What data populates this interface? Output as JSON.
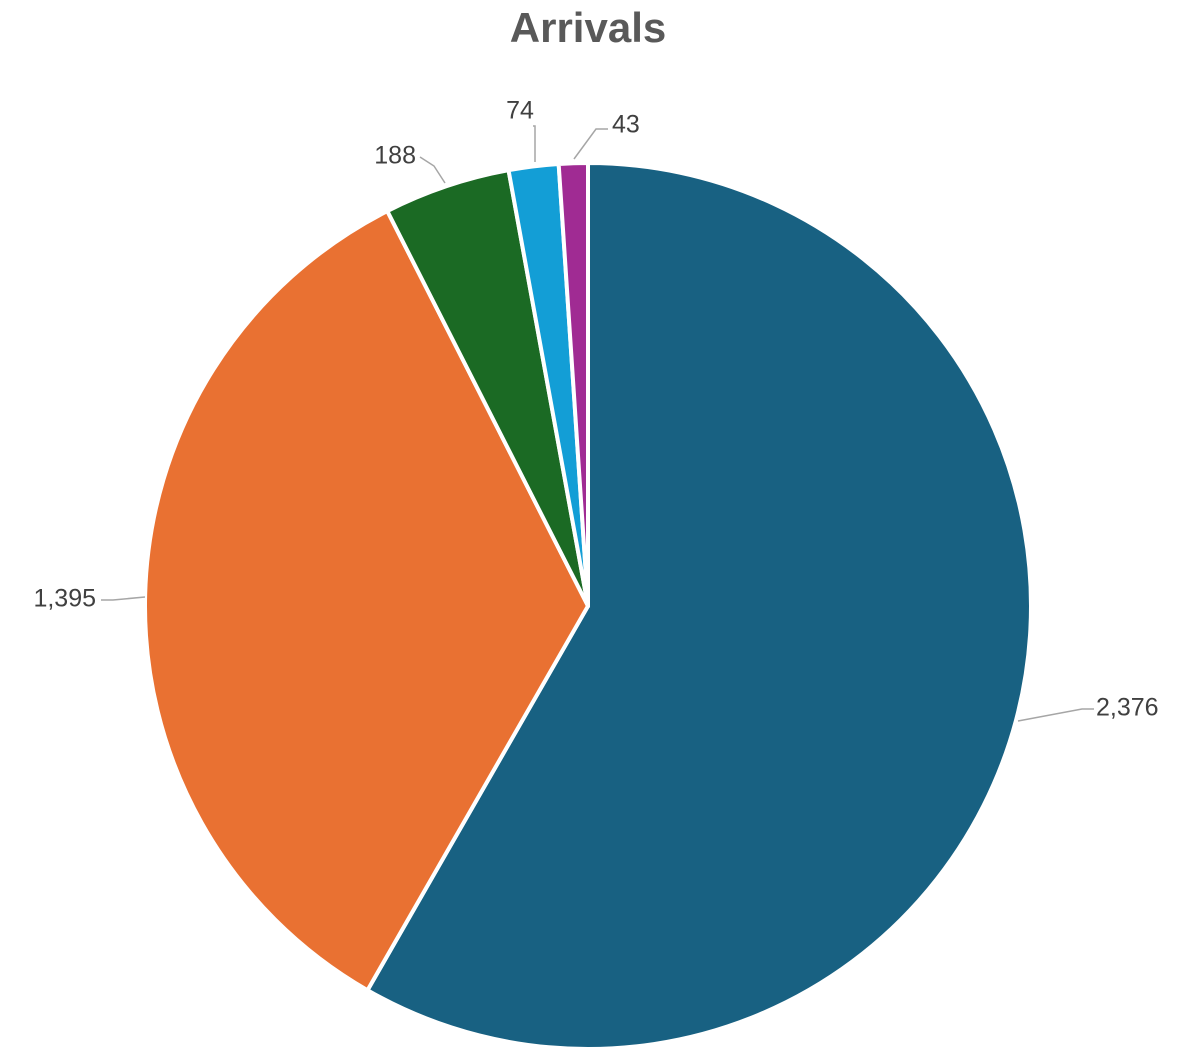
{
  "chart_data": {
    "type": "pie",
    "title": "Arrivals",
    "values": [
      2376,
      1395,
      188,
      74,
      43
    ],
    "data_labels": [
      "2,376",
      "1,395",
      "188",
      "74",
      "43"
    ],
    "colors": [
      "#186182",
      "#E97132",
      "#1B6A24",
      "#139ED6",
      "#A02B93"
    ],
    "legend": false
  }
}
